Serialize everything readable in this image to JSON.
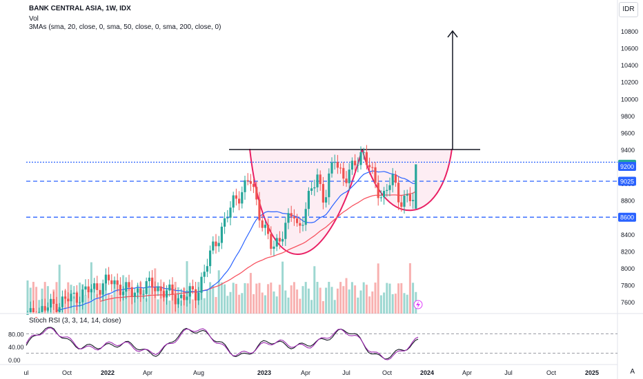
{
  "header": {
    "symbol_line": "BANK CENTRAL ASIA, 1W, IDX",
    "volume_label": "Vol",
    "ma_label": "3MAs (sma, 20, close, 0, sma, 50, close, 0, sma, 200, close, 0)",
    "currency": "IDR"
  },
  "rsi": {
    "label": "Stoch RSI (3, 3, 14, 14, close)",
    "ticks": [
      "80.00",
      "40.00",
      "0.00"
    ]
  },
  "auto_label": "A",
  "colors": {
    "up": "#26a69a",
    "down": "#ef5350",
    "ma20": "#2962ff",
    "ma50": "#f7525f",
    "cup": "#e91e63",
    "level": "#2962ff"
  },
  "chart_data": {
    "type": "candlestick",
    "y_axis_ticks": [
      10800,
      10600,
      10400,
      10200,
      10000,
      9800,
      9600,
      9400,
      9200,
      9000,
      8800,
      8600,
      8400,
      8200,
      8000,
      7800,
      7600
    ],
    "x_axis_ticks": [
      "ul",
      "Oct",
      "2022",
      "Apr",
      "Aug",
      "2023",
      "Apr",
      "Jul",
      "Oct",
      "2024",
      "Apr",
      "Jul",
      "Oct",
      "2025"
    ],
    "price_labels": [
      {
        "text": "9225",
        "value": 9225,
        "color": "#26a69a"
      },
      {
        "text": "9200",
        "value": 9200,
        "color": "#2962ff"
      },
      {
        "text": "9025",
        "value": 9025,
        "color": "#2962ff"
      },
      {
        "text": "8600",
        "value": 8600,
        "color": "#2962ff"
      }
    ],
    "horizontal_levels": [
      9250,
      9025,
      8600
    ],
    "neckline": 9400,
    "target": 10800,
    "last_close": 9225,
    "series": [
      {
        "name": "SMA 20"
      },
      {
        "name": "SMA 50"
      }
    ]
  }
}
